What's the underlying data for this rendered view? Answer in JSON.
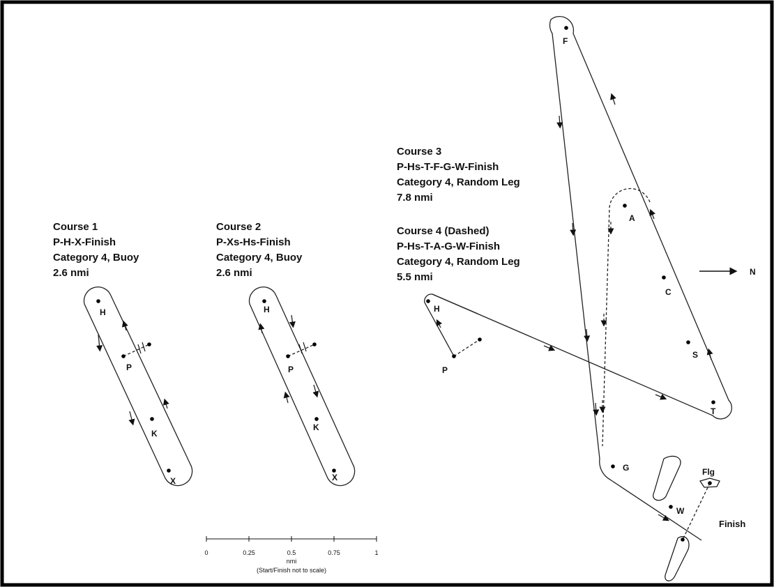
{
  "courses": [
    {
      "title": "Course 1",
      "route": "P-H-X-Finish",
      "category": "Category 4, Buoy",
      "distance": "2.6 nmi"
    },
    {
      "title": "Course 2",
      "route": "P-Xs-Hs-Finish",
      "category": "Category 4, Buoy",
      "distance": "2.6 nmi"
    },
    {
      "title": "Course 3",
      "route": "P-Hs-T-F-G-W-Finish",
      "category": "Category 4, Random Leg",
      "distance": "7.8 nmi"
    },
    {
      "title": "Course 4 (Dashed)",
      "route": "P-Hs-T-A-G-W-Finish",
      "category": "Category 4, Random Leg",
      "distance": "5.5 nmi"
    }
  ],
  "marks": {
    "c1": {
      "H": "H",
      "P": "P",
      "K": "K",
      "X": "X"
    },
    "c2": {
      "H": "H",
      "P": "P",
      "K": "K",
      "X": "X"
    },
    "c34": {
      "H": "H",
      "P": "P",
      "F": "F",
      "A": "A",
      "C": "C",
      "S": "S",
      "T": "T",
      "G": "G",
      "W": "W",
      "Flg": "Flg"
    }
  },
  "north_label": "N",
  "finish_label": "Finish",
  "scale": {
    "ticks": [
      "0",
      "0.25",
      "0.5",
      "0.75",
      "1"
    ],
    "unit": "nmi",
    "note": "(Start/Finish not to scale)"
  }
}
